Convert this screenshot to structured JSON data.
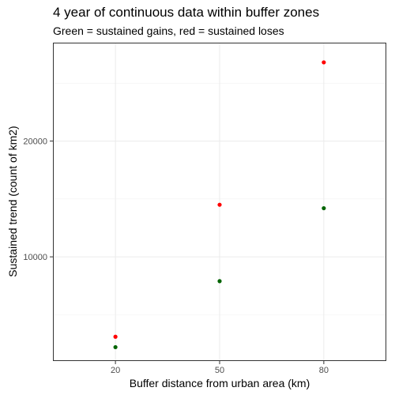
{
  "chart_data": {
    "type": "scatter",
    "title": "4 year of continuous data within buffer zones",
    "subtitle": "Green = sustained gains, red = sustained loses",
    "xlabel": "Buffer distance from urban area (km)",
    "ylabel": "Sustained trend (count of km2)",
    "x_categories": [
      "20",
      "50",
      "80"
    ],
    "y_ticks": [
      10000,
      20000
    ],
    "y_tick_labels": [
      "10000",
      "20000"
    ],
    "ylim": [
      1000,
      28500
    ],
    "grid": true,
    "legend": "none",
    "series": [
      {
        "color": "#ff0000",
        "x": [
          "20",
          "50",
          "80"
        ],
        "y": [
          3100,
          14500,
          26800
        ]
      },
      {
        "color": "#006400",
        "x": [
          "20",
          "50",
          "80"
        ],
        "y": [
          2200,
          7900,
          14200
        ]
      }
    ]
  }
}
